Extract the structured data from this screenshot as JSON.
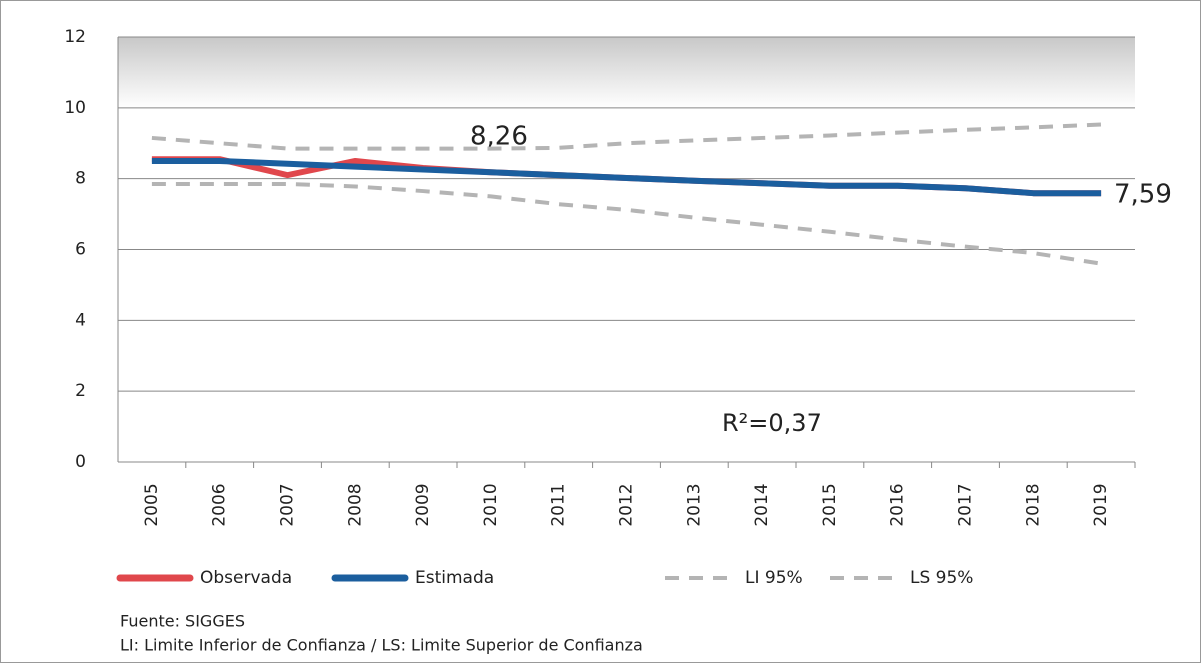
{
  "chart_data": {
    "type": "line",
    "categories": [
      "2005",
      "2006",
      "2007",
      "2008",
      "2009",
      "2010",
      "2011",
      "2012",
      "2013",
      "2014",
      "2015",
      "2016",
      "2017",
      "2018",
      "2019"
    ],
    "series": [
      {
        "name": "Observada",
        "color": "#e0474c",
        "values": [
          8.55,
          8.55,
          8.1,
          8.5,
          8.3,
          8.18,
          8.1,
          8.02,
          7.94,
          7.87,
          7.8,
          7.8,
          7.73,
          7.59,
          7.59
        ]
      },
      {
        "name": "Estimada",
        "color": "#1b5e9e",
        "values": [
          8.5,
          8.5,
          8.42,
          8.34,
          8.26,
          8.18,
          8.1,
          8.02,
          7.94,
          7.87,
          7.8,
          7.8,
          7.73,
          7.59,
          7.59
        ]
      },
      {
        "name": "LI 95%",
        "color": "#b4b4b4",
        "dashed": true,
        "values": [
          7.85,
          7.85,
          7.85,
          7.78,
          7.65,
          7.5,
          7.28,
          7.12,
          6.9,
          6.7,
          6.5,
          6.28,
          6.08,
          5.9,
          5.6
        ]
      },
      {
        "name": "LS 95%",
        "color": "#b4b4b4",
        "dashed": true,
        "values": [
          9.15,
          9.0,
          8.85,
          8.85,
          8.85,
          8.85,
          8.87,
          9.0,
          9.08,
          9.15,
          9.22,
          9.3,
          9.38,
          9.45,
          9.53
        ]
      }
    ],
    "ylim": [
      0,
      12
    ],
    "yticks": [
      0,
      2,
      4,
      6,
      8,
      10,
      12
    ],
    "grid": true,
    "annotations": [
      "8,26",
      "7,59",
      "R²=0,37"
    ],
    "notes": [
      "Fuente: SIGGES",
      "LI: Limite Inferior de Confianza / LS: Limite Superior de Confianza"
    ]
  }
}
